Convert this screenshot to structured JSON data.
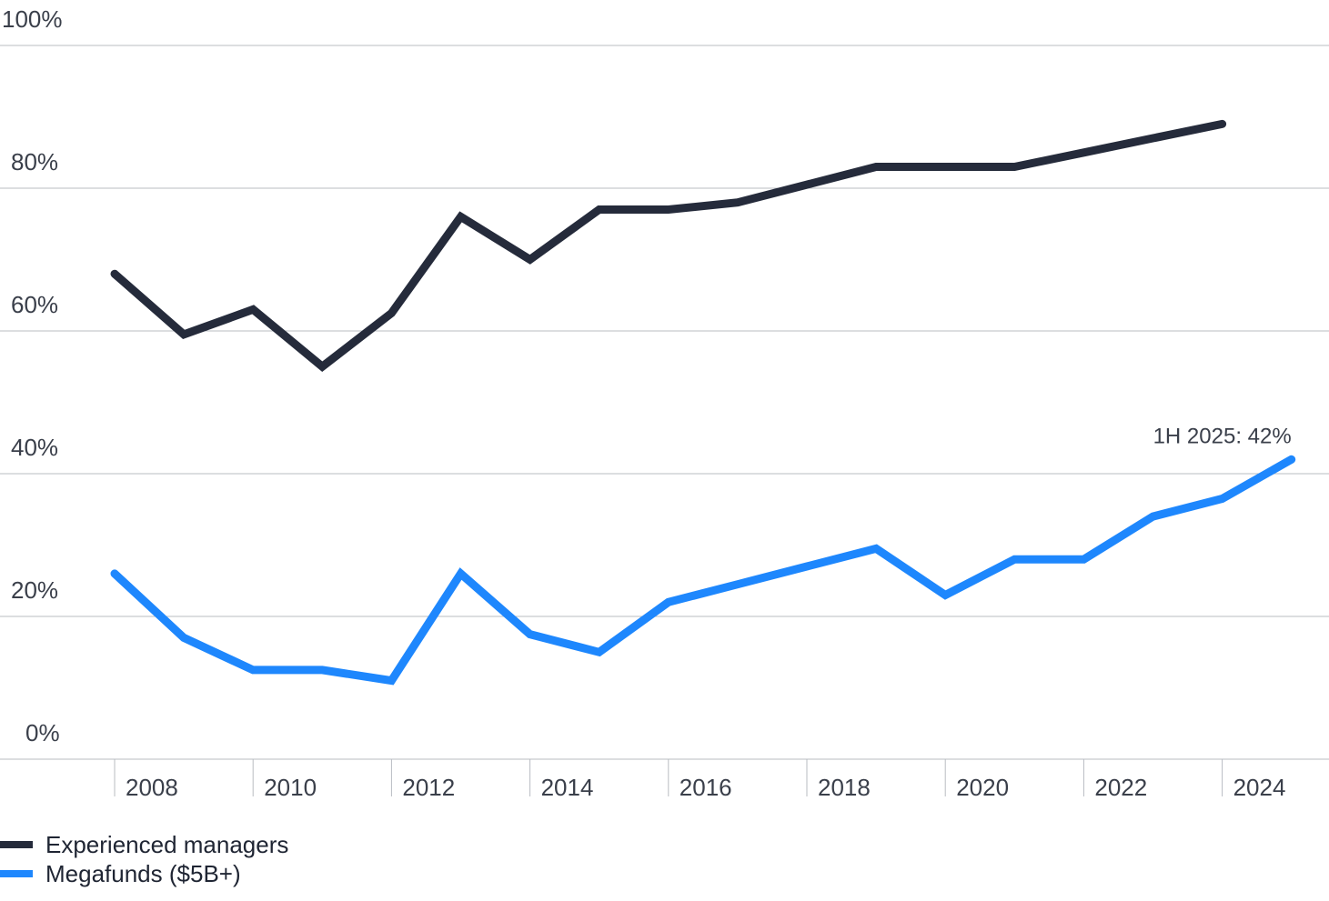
{
  "chart_data": {
    "type": "line",
    "x": [
      2007,
      2008,
      2009,
      2010,
      2011,
      2012,
      2013,
      2014,
      2015,
      2016,
      2017,
      2018,
      2019,
      2020,
      2021,
      2022,
      2023,
      2024
    ],
    "x_tick_labels": [
      "2008",
      "2010",
      "2012",
      "2014",
      "2016",
      "2018",
      "2020",
      "2022",
      "2024"
    ],
    "y_tick_labels": [
      "100%",
      "80%",
      "60%",
      "40%",
      "20%",
      "0%"
    ],
    "ylim": [
      0,
      100
    ],
    "grid": "horizontal",
    "series": [
      {
        "name": "Experienced managers",
        "color": "#252b3b",
        "values": [
          68,
          59.5,
          63,
          55,
          62.5,
          76,
          70,
          77,
          77,
          78,
          80.5,
          83,
          83,
          83,
          85,
          87,
          89,
          null
        ]
      },
      {
        "name": "Megafunds ($5B+)",
        "color": "#1e87fd",
        "values": [
          26,
          17,
          12.5,
          12.5,
          11,
          26,
          17.5,
          15,
          22,
          24.5,
          27,
          29.5,
          23,
          28,
          28,
          34,
          36.5,
          42
        ]
      }
    ],
    "annotations": [
      {
        "text": "1H 2025: 42%",
        "series": "Megafunds ($5B+)",
        "x": 2024
      }
    ],
    "legend_position": "bottom-left"
  }
}
